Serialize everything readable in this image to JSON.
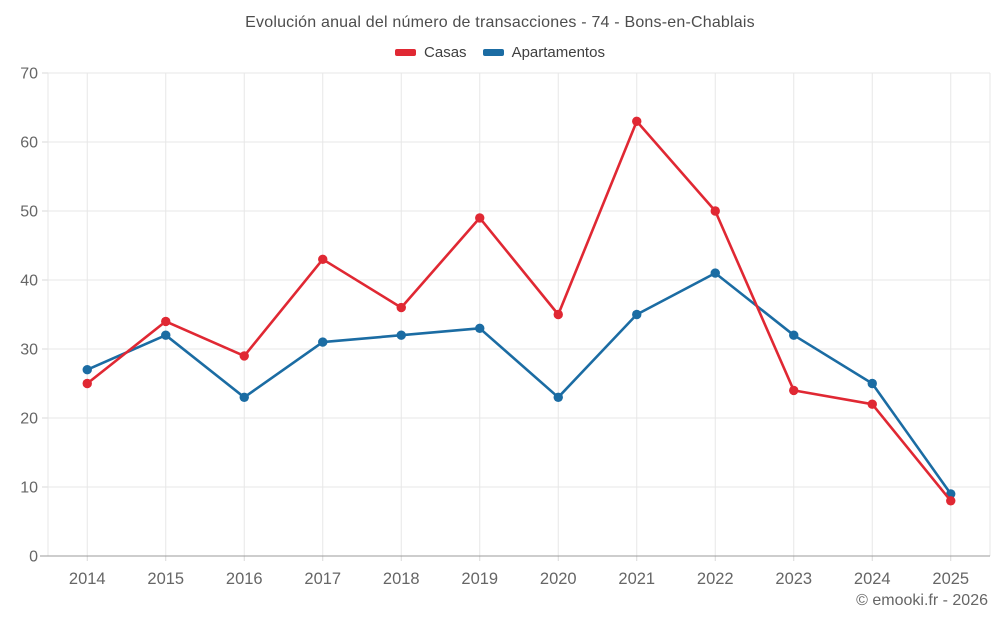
{
  "title": "Evolución anual del número de transacciones - 74 - Bons-en-Chablais",
  "legend": {
    "items": [
      {
        "label": "Casas",
        "color": "#e02833"
      },
      {
        "label": "Apartamentos",
        "color": "#1b6ca3"
      }
    ]
  },
  "footer": "© emooki.fr - 2026",
  "chart_data": {
    "type": "line",
    "title": "Evolución anual del número de transacciones - 74 - Bons-en-Chablais",
    "categories": [
      "2014",
      "2015",
      "2016",
      "2017",
      "2018",
      "2019",
      "2020",
      "2021",
      "2022",
      "2023",
      "2024",
      "2025"
    ],
    "series": [
      {
        "name": "Casas",
        "color": "#e02833",
        "values": [
          25,
          34,
          29,
          43,
          36,
          49,
          35,
          63,
          50,
          24,
          22,
          8
        ]
      },
      {
        "name": "Apartamentos",
        "color": "#1b6ca3",
        "values": [
          27,
          32,
          23,
          31,
          32,
          33,
          23,
          35,
          41,
          32,
          25,
          9
        ]
      }
    ],
    "xlabel": "",
    "ylabel": "",
    "ylim": [
      0,
      70
    ],
    "ytick_step": 10,
    "y_tick_labels": [
      "0",
      "10",
      "20",
      "30",
      "40",
      "50",
      "60",
      "70"
    ],
    "grid": true,
    "legend_position": "top",
    "watermark": "© emooki.fr - 2026"
  },
  "style": {
    "background": "#ffffff",
    "grid_color": "#e7e7e7",
    "axis_line_color": "#9b9b9b",
    "tick_color": "#d8d8d8",
    "axis_label_color": "#666666",
    "title_color": "#4d4d4d",
    "legend_text_color": "#404040"
  }
}
